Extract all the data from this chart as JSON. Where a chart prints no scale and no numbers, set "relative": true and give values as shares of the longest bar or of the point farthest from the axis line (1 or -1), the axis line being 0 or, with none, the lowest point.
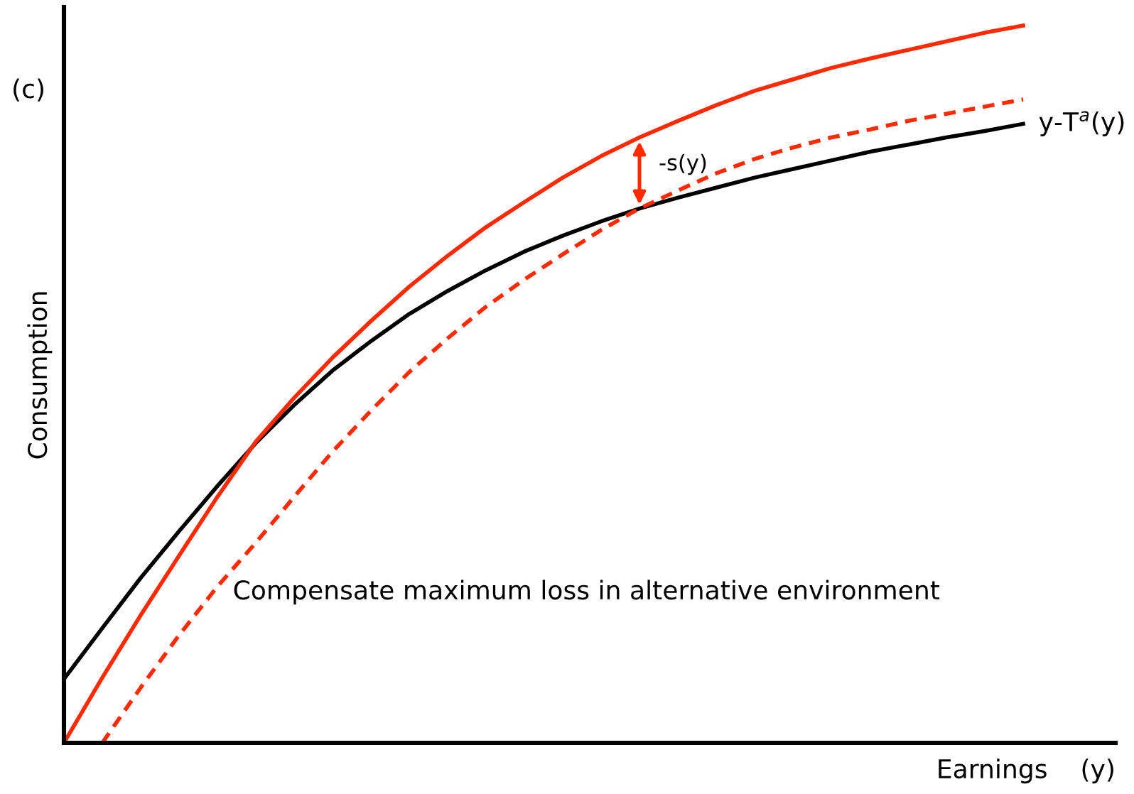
{
  "chart_data": {
    "type": "line",
    "relative": true,
    "xlabel": "Earnings    (y)",
    "ylabel": "Consumption",
    "categories": [
      null,
      null,
      null,
      null,
      null,
      null,
      null,
      null,
      null,
      null,
      null,
      null,
      null,
      null,
      null,
      null,
      null,
      null,
      null,
      null,
      null,
      null,
      null,
      null,
      null,
      null
    ],
    "series": [
      {
        "name": "y-T$^{a}$(y)",
        "color": "#000000",
        "line_style": "solid",
        "values": [
          0.089,
          0.16,
          0.23,
          0.295,
          0.358,
          0.418,
          0.471,
          0.519,
          0.56,
          0.598,
          0.63,
          0.659,
          0.685,
          0.707,
          0.727,
          0.745,
          0.76,
          0.774,
          0.788,
          0.8,
          0.812,
          0.824,
          0.834,
          0.844,
          0.853,
          0.863
        ]
      },
      {
        "color": "#ff2a00",
        "line_style": "solid",
        "values": [
          0,
          0.091,
          0.178,
          0.261,
          0.343,
          0.42,
          0.481,
          0.537,
          0.588,
          0.636,
          0.679,
          0.719,
          0.754,
          0.788,
          0.818,
          0.844,
          0.867,
          0.889,
          0.909,
          0.925,
          0.941,
          0.954,
          0.966,
          0.978,
          0.99,
          1
        ]
      },
      {
        "color": "#ff2a00",
        "line_style": "dashed",
        "values": [
          null,
          0,
          0.077,
          0.15,
          0.218,
          0.279,
          0.343,
          0.406,
          0.463,
          0.517,
          0.564,
          0.608,
          0.646,
          0.681,
          0.715,
          0.745,
          0.77,
          0.794,
          0.814,
          0.83,
          0.844,
          0.855,
          0.867,
          0.877,
          0.887,
          0.897
        ]
      }
    ],
    "annotations": [
      "(c)",
      "-s(y)",
      "Compensate maximum loss in alternative environment"
    ],
    "legend": false,
    "marker": "none"
  }
}
